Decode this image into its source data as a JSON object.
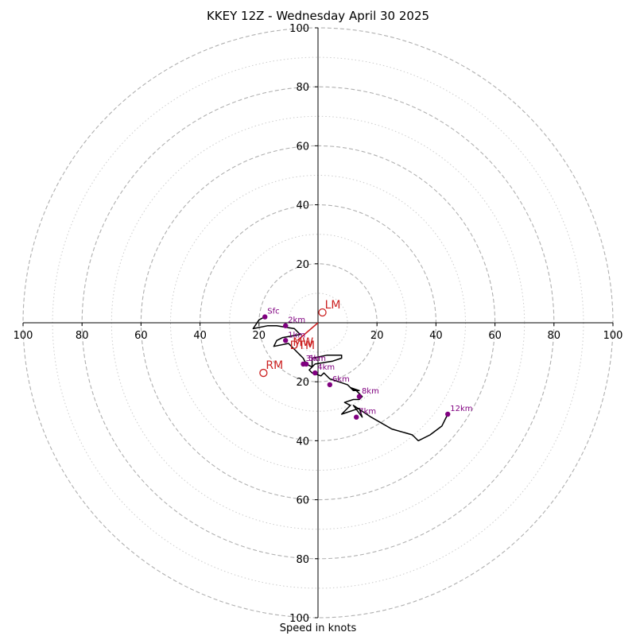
{
  "title": "KKEY 12Z - Wednesday April 30 2025",
  "xlabel": "Speed in knots",
  "colors": {
    "hodograph": "#000000",
    "height_points": "#800080",
    "motion_markers": "#cc2222",
    "major_rings": "#b0b0b0",
    "minor_rings": "#cccccc"
  },
  "chart_data": {
    "type": "line",
    "title": "KKEY 12Z - Wednesday April 30 2025",
    "xlabel": "Speed in knots",
    "ylabel": "",
    "xlim": [
      -100,
      100
    ],
    "ylim": [
      -100,
      100
    ],
    "major_rings": [
      20,
      40,
      60,
      80,
      100
    ],
    "minor_rings": [
      10,
      30,
      50,
      70,
      90
    ],
    "grid": true,
    "axis_ticks": {
      "right": [
        "20",
        "40",
        "60",
        "80",
        "100"
      ],
      "left": [
        "20",
        "40",
        "60",
        "80",
        "100"
      ],
      "top": [
        "20",
        "40",
        "60",
        "80",
        "100"
      ],
      "bottom": [
        "20",
        "40",
        "60",
        "80",
        "100"
      ]
    },
    "hodograph_u": [
      -18,
      -20,
      -22,
      -17,
      -14,
      -8,
      -6,
      -12,
      -14,
      -15,
      -10,
      -9,
      -8,
      -7,
      -6,
      -5,
      -4,
      -2,
      -2,
      3,
      8,
      8,
      5,
      -1,
      -3,
      -2,
      1,
      2,
      4,
      7,
      10,
      12,
      14,
      11,
      13,
      15,
      14,
      12,
      9,
      11,
      8,
      14,
      15,
      12,
      18,
      25,
      32,
      34,
      38,
      42,
      44
    ],
    "hodograph_v": [
      -2,
      -1,
      2,
      1,
      1,
      2,
      4,
      5,
      6,
      8,
      7,
      8,
      9,
      10,
      11,
      12,
      14,
      15,
      12,
      11,
      11,
      12,
      13,
      14,
      16,
      17,
      18,
      17,
      19,
      20,
      21,
      23,
      23,
      22,
      23,
      25,
      26,
      26,
      27,
      28,
      31,
      29,
      32,
      28,
      32,
      36,
      38,
      40,
      38,
      35,
      31
    ],
    "height_points": [
      {
        "label": "Sfc",
        "u": -18,
        "v": -2
      },
      {
        "label": "1km",
        "u": -11,
        "v": 6
      },
      {
        "label": "2km",
        "u": -11,
        "v": 1
      },
      {
        "label": "3km",
        "u": -5,
        "v": 14
      },
      {
        "label": "4km",
        "u": -1,
        "v": 17
      },
      {
        "label": "5km",
        "u": -4,
        "v": 14
      },
      {
        "label": "6km",
        "u": 4,
        "v": 21
      },
      {
        "label": "7km",
        "u": 13,
        "v": 32
      },
      {
        "label": "8km",
        "u": 14,
        "v": 25
      },
      {
        "label": "12km",
        "u": 44,
        "v": 31
      }
    ],
    "storm_motion": [
      {
        "label": "LM",
        "u": 1.5,
        "v": -3.5
      },
      {
        "label": "RM",
        "u": -18.5,
        "v": 17
      },
      {
        "label": "MW",
        "u": -8,
        "v": 6.5
      },
      {
        "label": "DTM",
        "u": -9,
        "v": 7.5
      }
    ],
    "shear_vector": {
      "u1": 0,
      "v1": 0,
      "u2": -7,
      "v2": 6
    }
  }
}
